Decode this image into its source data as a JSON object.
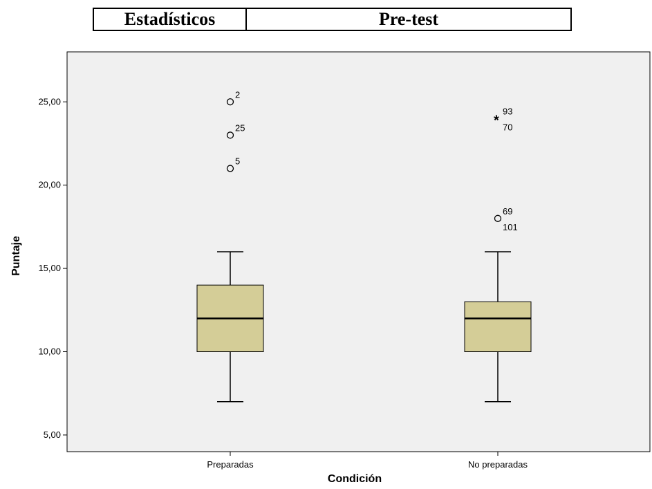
{
  "header": {
    "left_label": "Estadísticos",
    "right_label": "Pre-test"
  },
  "chart_data": {
    "type": "boxplot",
    "xlabel": "Condición",
    "ylabel": "Puntaje",
    "ylim": [
      4,
      28
    ],
    "yticks": [
      5,
      10,
      15,
      20,
      25
    ],
    "ytick_labels": [
      "5,00",
      "10,00",
      "15,00",
      "20,00",
      "25,00"
    ],
    "plot_background": "#f0f0f0",
    "box_color": "#d4cd97",
    "categories": [
      "Preparadas",
      "No preparadas"
    ],
    "series": [
      {
        "category": "Preparadas",
        "min": 7,
        "q1": 10,
        "median": 12,
        "q3": 14,
        "max": 16,
        "outliers": [
          {
            "value": 25,
            "marker": "circle",
            "label": "2"
          },
          {
            "value": 23,
            "marker": "circle",
            "label": "25"
          },
          {
            "value": 21,
            "marker": "circle",
            "label": "5"
          }
        ]
      },
      {
        "category": "No preparadas",
        "min": 7,
        "q1": 10,
        "median": 12,
        "q3": 13,
        "max": 16,
        "outliers": [
          {
            "value": 24,
            "marker": "star",
            "label": "93",
            "label2": "70"
          },
          {
            "value": 18,
            "marker": "circle",
            "label": "69",
            "label2": "101"
          }
        ]
      }
    ]
  }
}
